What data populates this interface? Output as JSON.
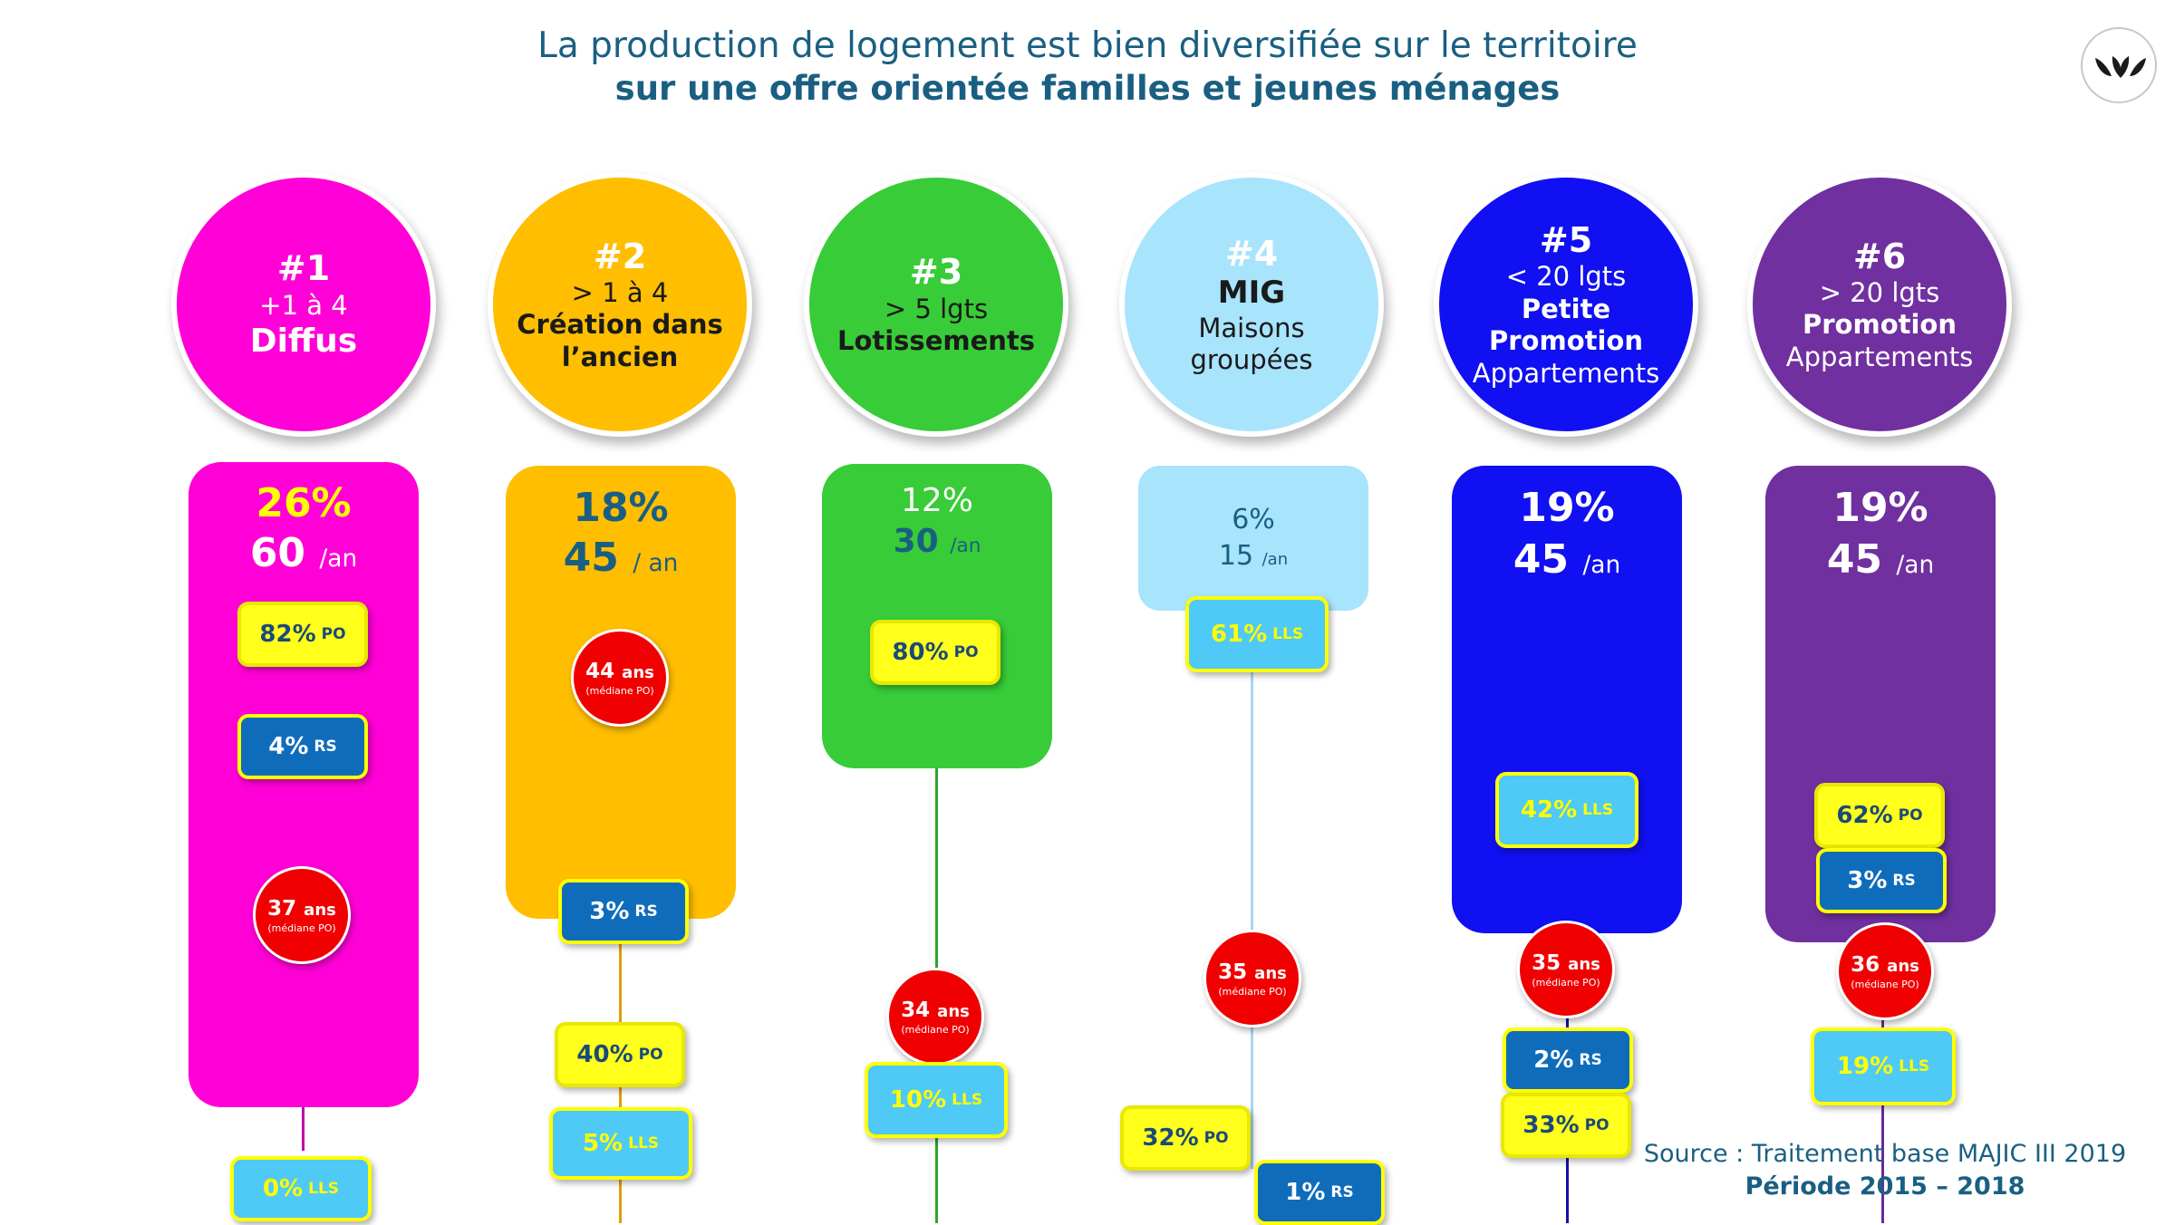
{
  "title": {
    "line1": "La production de logement est bien diversifiée sur le territoire",
    "line2": "sur une offre orientée familles et jeunes ménages"
  },
  "logo": {
    "icon": "leaves-logo-icon",
    "color": "#1a1a1a"
  },
  "columns": [
    {
      "rank": "#1",
      "line1": "+1 à 4",
      "line2": "Diffus",
      "line3": "",
      "line4": "",
      "pct": "26%",
      "per_value": "60",
      "per_unit": "/an",
      "badges": {
        "po": "82%",
        "rs": "4%",
        "lls": "0%"
      },
      "age": {
        "value": "37",
        "unit": "ans",
        "note": "(médiane PO)"
      },
      "colors": {
        "circle": "#ff00d6",
        "pill": "#ff00d6",
        "line": "#c000a8",
        "pct": "#ffff00",
        "per": "#ffffff",
        "rank": "#ffffff",
        "text": "#ffffff"
      }
    },
    {
      "rank": "#2",
      "line1": "> 1 à 4",
      "line2": "Création dans",
      "line3": "l’ancien",
      "line4": "",
      "pct": "18%",
      "per_value": "45",
      "per_unit": "/ an",
      "badges": {
        "po": "40%",
        "rs": "3%",
        "lls": "5%"
      },
      "age": {
        "value": "44",
        "unit": "ans",
        "note": "(médiane PO)"
      },
      "colors": {
        "circle": "#ffbe00",
        "pill": "#ffbe00",
        "line": "#e0a000",
        "pct": "#1a5f82",
        "per": "#1a5f82",
        "rank": "#ffffff",
        "text": "#1a1a1a"
      }
    },
    {
      "rank": "#3",
      "line1": "> 5 lgts",
      "line2": "Lotissements",
      "line3": "",
      "line4": "",
      "pct": "12%",
      "per_value": "30",
      "per_unit": "/an",
      "badges": {
        "po": "80%",
        "rs": "",
        "lls": "10%"
      },
      "age": {
        "value": "34",
        "unit": "ans",
        "note": "(médiane PO)"
      },
      "colors": {
        "circle": "#38cc38",
        "pill": "#38cc38",
        "line": "#2aa52a",
        "pct": "#ffffff",
        "per": "#1a5f82",
        "rank": "#ffffff",
        "text": "#1a1a1a"
      }
    },
    {
      "rank": "#4",
      "line1": "MIG",
      "line2": "Maisons",
      "line3": "groupées",
      "line4": "",
      "pct": "6%",
      "per_value": "15",
      "per_unit": "/an",
      "badges": {
        "po": "32%",
        "rs": "1%",
        "lls": "61%"
      },
      "age": {
        "value": "35",
        "unit": "ans",
        "note": "(médiane PO)"
      },
      "colors": {
        "circle": "#a8e4fc",
        "pill": "#a8e4fc",
        "line": "#a8d8f0",
        "pct": "#1a5f82",
        "per": "#1a5f82",
        "rank": "#ffffff",
        "text": "#1a1a1a"
      }
    },
    {
      "rank": "#5",
      "line1": "< 20 lgts",
      "line2": "Petite",
      "line3": "Promotion",
      "line4": "Appartements",
      "pct": "19%",
      "per_value": "45",
      "per_unit": "/an",
      "badges": {
        "po": "33%",
        "rs": "2%",
        "lls": "42%"
      },
      "age": {
        "value": "35",
        "unit": "ans",
        "note": "(médiane PO)"
      },
      "colors": {
        "circle": "#1010f2",
        "pill": "#1010f2",
        "line": "#1010b0",
        "pct": "#ffffff",
        "per": "#ffffff",
        "rank": "#ffffff",
        "text": "#ffffff"
      }
    },
    {
      "rank": "#6",
      "line1": "> 20 lgts",
      "line2": "Promotion",
      "line3": "Appartements",
      "line4": "",
      "pct": "19%",
      "per_value": "45",
      "per_unit": "/an",
      "badges": {
        "po": "62%",
        "rs": "3%",
        "lls": "19%"
      },
      "age": {
        "value": "36",
        "unit": "ans",
        "note": "(médiane PO)"
      },
      "colors": {
        "circle": "#7030a0",
        "pill": "#7030a0",
        "line": "#6a2a9a",
        "pct": "#ffffff",
        "per": "#ffffff",
        "rank": "#ffffff",
        "text": "#ffffff"
      }
    }
  ],
  "labels": {
    "po": "PO",
    "rs": "RS",
    "lls": "LLS"
  },
  "source": {
    "line1": "Source : Traitement base MAJIC III 2019",
    "line2": "Période 2015 – 2018"
  }
}
